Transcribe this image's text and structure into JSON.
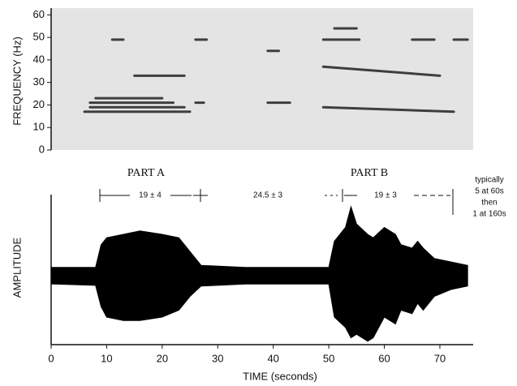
{
  "chart_data": [
    {
      "type": "spectrogram",
      "y_label": "FREQUENCY (Hz)",
      "xlim": [
        0,
        76
      ],
      "ylim": [
        0,
        63
      ],
      "yticks": [
        0,
        10,
        20,
        30,
        40,
        50,
        60
      ],
      "color": "#222222",
      "segments": [
        {
          "t": [
            11,
            13
          ],
          "f": [
            49,
            49
          ]
        },
        {
          "t": [
            26,
            28
          ],
          "f": [
            49,
            49
          ]
        },
        {
          "t": [
            15,
            24
          ],
          "f": [
            33,
            33
          ]
        },
        {
          "t": [
            6,
            25
          ],
          "f": [
            17,
            17
          ]
        },
        {
          "t": [
            7,
            24
          ],
          "f": [
            19,
            19
          ]
        },
        {
          "t": [
            7,
            22
          ],
          "f": [
            21,
            21
          ]
        },
        {
          "t": [
            8,
            20
          ],
          "f": [
            23,
            23
          ]
        },
        {
          "t": [
            26,
            27.5
          ],
          "f": [
            21,
            21
          ]
        },
        {
          "t": [
            39,
            41
          ],
          "f": [
            44,
            44
          ]
        },
        {
          "t": [
            39,
            43
          ],
          "f": [
            21,
            21
          ]
        },
        {
          "t": [
            51,
            55
          ],
          "f": [
            54,
            54
          ]
        },
        {
          "t": [
            49,
            55.5
          ],
          "f": [
            49,
            49
          ]
        },
        {
          "t": [
            65,
            69
          ],
          "f": [
            49,
            49
          ]
        },
        {
          "t": [
            72.5,
            75
          ],
          "f": [
            49,
            49
          ]
        },
        {
          "t": [
            49,
            70
          ],
          "f": [
            37,
            33
          ]
        },
        {
          "t": [
            49,
            72.5
          ],
          "f": [
            19,
            17
          ]
        }
      ]
    },
    {
      "type": "waveform",
      "y_label": "AMPLITUDE",
      "x_label": "TIME (seconds)",
      "xlim": [
        0,
        76
      ],
      "xticks": [
        0,
        10,
        20,
        30,
        40,
        50,
        60,
        70
      ],
      "ylim": [
        -1,
        1
      ],
      "color": "#000000",
      "x": [
        0,
        8,
        9,
        10,
        13,
        16,
        20,
        23,
        25,
        27,
        35,
        50,
        51,
        53,
        54,
        55,
        57,
        58,
        60,
        62,
        63,
        65,
        66,
        67,
        69,
        72,
        75
      ],
      "upper": [
        0.12,
        0.12,
        0.45,
        0.55,
        0.6,
        0.65,
        0.6,
        0.55,
        0.35,
        0.15,
        0.12,
        0.12,
        0.5,
        0.7,
        1.0,
        0.75,
        0.6,
        0.55,
        0.7,
        0.6,
        0.45,
        0.4,
        0.5,
        0.4,
        0.25,
        0.2,
        0.15
      ],
      "lower": [
        -0.12,
        -0.14,
        -0.45,
        -0.6,
        -0.65,
        -0.65,
        -0.6,
        -0.5,
        -0.3,
        -0.15,
        -0.12,
        -0.12,
        -0.6,
        -0.75,
        -0.9,
        -0.85,
        -0.95,
        -0.9,
        -0.6,
        -0.7,
        -0.5,
        -0.55,
        -0.4,
        -0.5,
        -0.3,
        -0.2,
        -0.15
      ],
      "parts": [
        "PART A",
        "PART B"
      ],
      "intervals": [
        "19 ± 4",
        "24.5 ± 3",
        "19 ± 3"
      ],
      "note": [
        "typically",
        "5 at 60s",
        "then",
        "1 at 160s"
      ]
    }
  ]
}
